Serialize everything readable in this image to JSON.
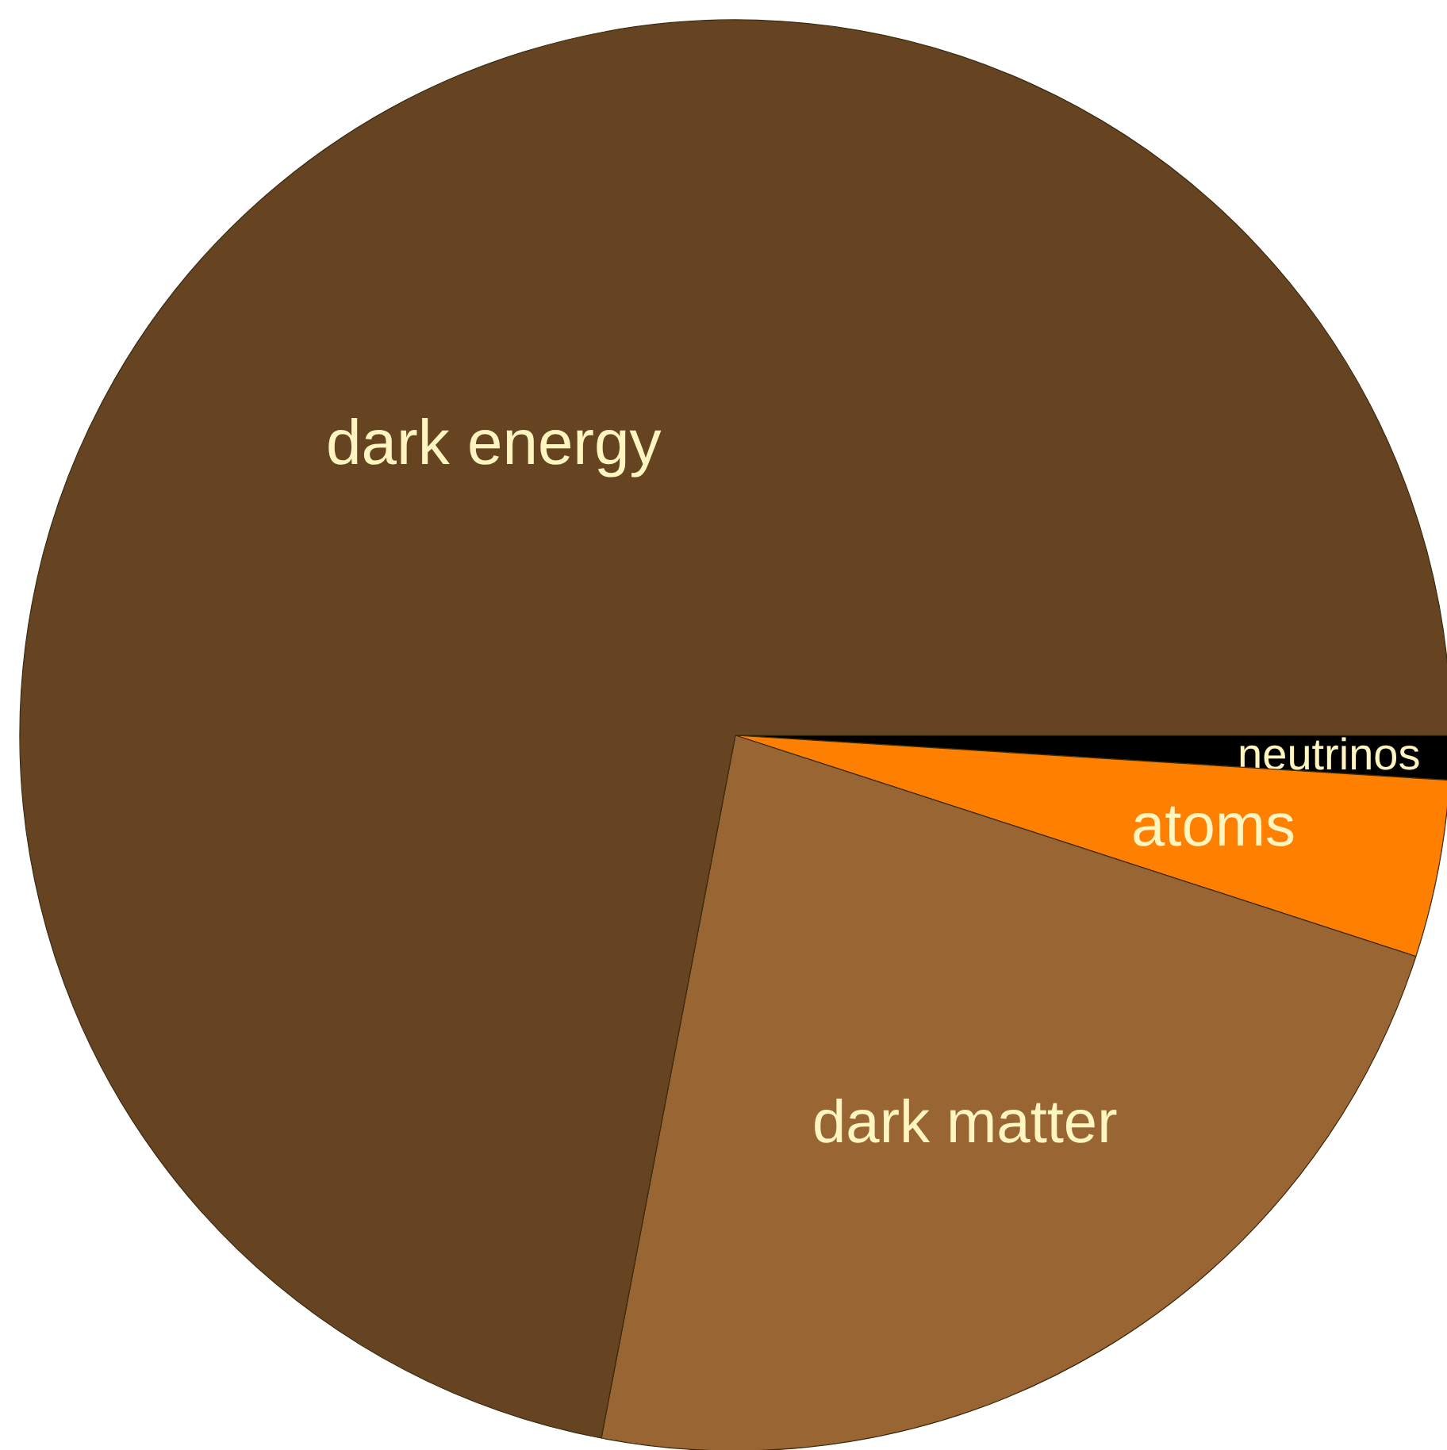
{
  "chart_data": {
    "type": "pie",
    "categories": [
      "neutrinos",
      "atoms",
      "dark matter",
      "dark energy"
    ],
    "values": [
      1,
      4,
      23,
      72
    ],
    "colors": [
      "#000000",
      "#ff7f00",
      "#996633",
      "#664422"
    ]
  }
}
